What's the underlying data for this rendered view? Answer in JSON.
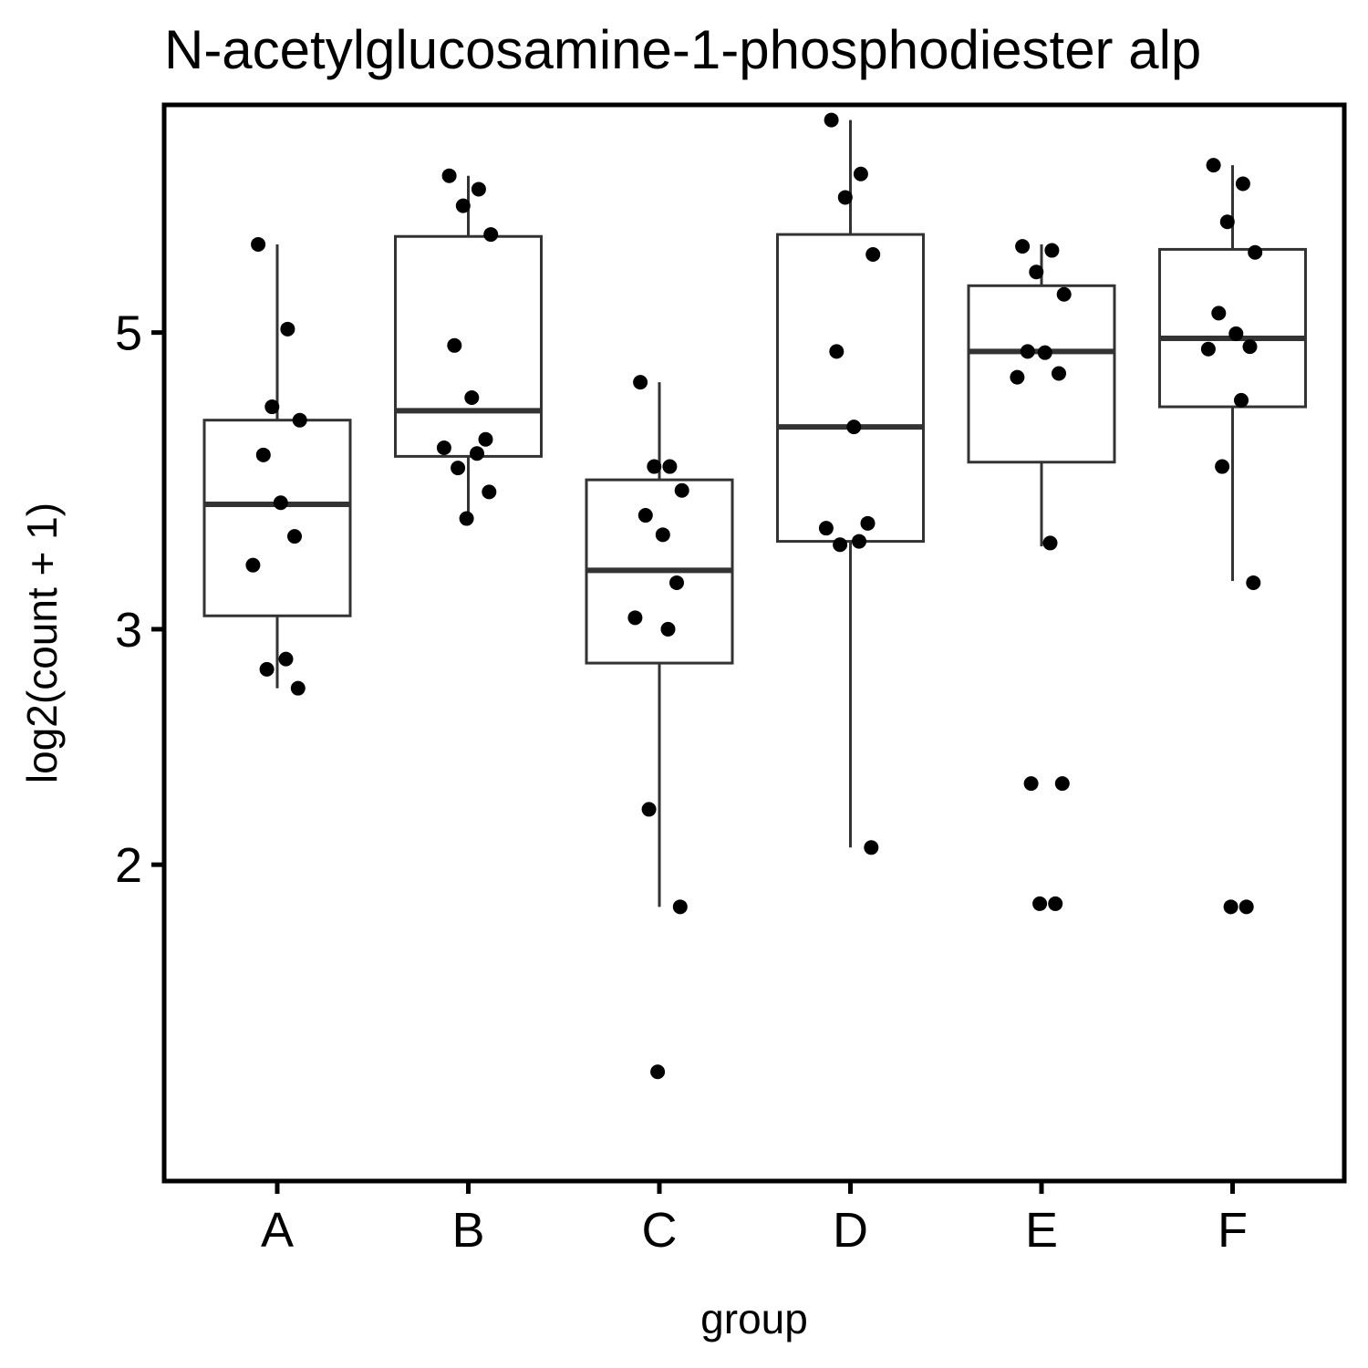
{
  "chart_data": {
    "type": "box",
    "title": "N-acetylglucosamine-1-phosphodiester alp",
    "xlabel": "group",
    "ylabel": "log2(count + 1)",
    "y_scale": "log",
    "ylim": [
      1.16,
      7.4
    ],
    "y_ticks": [
      2,
      3,
      5
    ],
    "categories": [
      "A",
      "B",
      "C",
      "D",
      "E",
      "F"
    ],
    "grid": false,
    "legend": "none",
    "colors": {
      "box_line": "#333333",
      "point": "#000000",
      "frame": "#000000"
    },
    "boxes": [
      {
        "group": "A",
        "min": 2.71,
        "q1": 3.07,
        "median": 3.72,
        "q3": 4.3,
        "max": 5.82
      },
      {
        "group": "B",
        "min": 3.63,
        "q1": 4.04,
        "median": 4.37,
        "q3": 5.9,
        "max": 6.55
      },
      {
        "group": "C",
        "min": 1.86,
        "q1": 2.83,
        "median": 3.32,
        "q3": 3.88,
        "max": 4.59
      },
      {
        "group": "D",
        "min": 2.06,
        "q1": 3.49,
        "median": 4.25,
        "q3": 5.92,
        "max": 7.21
      },
      {
        "group": "E",
        "min": 3.46,
        "q1": 4.0,
        "median": 4.84,
        "q3": 5.42,
        "max": 5.82
      },
      {
        "group": "F",
        "min": 3.26,
        "q1": 4.4,
        "median": 4.95,
        "q3": 5.77,
        "max": 6.67
      }
    ],
    "points": [
      {
        "group": "A",
        "values": [
          5.82,
          5.03,
          4.4,
          4.3,
          4.05,
          3.73,
          3.52,
          3.35,
          2.85,
          2.8,
          2.71
        ]
      },
      {
        "group": "B",
        "values": [
          6.55,
          6.4,
          6.22,
          5.92,
          4.89,
          4.47,
          4.16,
          4.1,
          4.06,
          3.96,
          3.8,
          3.63
        ]
      },
      {
        "group": "C",
        "values": [
          4.59,
          3.97,
          3.97,
          3.81,
          3.65,
          3.53,
          3.25,
          3.06,
          3.0,
          2.2,
          1.86,
          1.4
        ]
      },
      {
        "group": "D",
        "values": [
          7.21,
          6.57,
          6.31,
          5.72,
          4.84,
          4.25,
          3.6,
          3.57,
          3.49,
          3.47,
          2.06
        ]
      },
      {
        "group": "E",
        "values": [
          5.8,
          5.76,
          5.55,
          5.34,
          4.84,
          4.83,
          4.66,
          4.63,
          3.48,
          2.3,
          2.3,
          1.87,
          1.87
        ]
      },
      {
        "group": "F",
        "values": [
          6.67,
          6.46,
          6.05,
          5.74,
          5.17,
          4.99,
          4.88,
          4.86,
          4.45,
          3.97,
          3.25,
          1.86,
          1.86
        ]
      }
    ]
  }
}
